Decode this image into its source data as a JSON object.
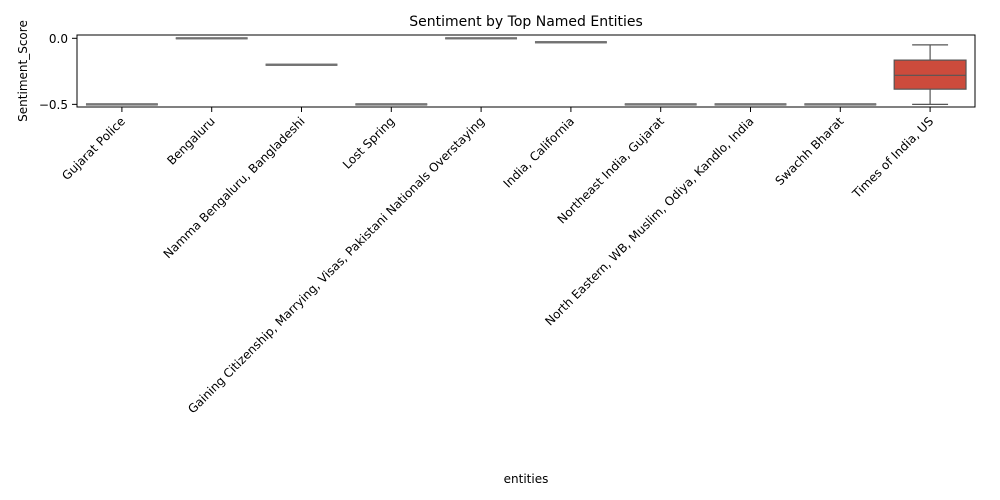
{
  "chart_data": {
    "type": "box",
    "title": "Sentiment by Top Named Entities",
    "xlabel": "entities",
    "ylabel": "Sentiment_Score",
    "ylim": [
      -0.52,
      0.025
    ],
    "yticks": [
      {
        "value": 0.0,
        "label": "0.0"
      },
      {
        "value": -0.5,
        "label": "−0.5"
      }
    ],
    "grid": false,
    "legend": "none",
    "categories": [
      "Gujarat Police",
      "Bengaluru",
      "Namma Bengaluru, Bangladeshi",
      "Lost Spring",
      "Gaining Citizenship, Marrying, Visas, Pakistani Nationals Overstaying",
      "India, California",
      "Northeast India, Gujarat",
      "North Eastern, WB, Muslim, Odiya, Kandlo, India",
      "Swachh Bharat",
      "Times of India, US"
    ],
    "boxes": [
      {
        "min": -0.5,
        "q1": -0.5,
        "median": -0.5,
        "q3": -0.5,
        "max": -0.5,
        "color": "#8e8e8e"
      },
      {
        "min": 0.0,
        "q1": 0.0,
        "median": 0.0,
        "q3": 0.0,
        "max": 0.0,
        "color": "#8e8e8e"
      },
      {
        "min": -0.2,
        "q1": -0.2,
        "median": -0.2,
        "q3": -0.2,
        "max": -0.2,
        "color": "#8e8e8e"
      },
      {
        "min": -0.5,
        "q1": -0.5,
        "median": -0.5,
        "q3": -0.5,
        "max": -0.5,
        "color": "#8e8e8e"
      },
      {
        "min": 0.0,
        "q1": 0.0,
        "median": 0.0,
        "q3": 0.0,
        "max": 0.0,
        "color": "#8e8e8e"
      },
      {
        "min": -0.03,
        "q1": -0.03,
        "median": -0.03,
        "q3": -0.03,
        "max": -0.03,
        "color": "#8e8e8e"
      },
      {
        "min": -0.5,
        "q1": -0.5,
        "median": -0.5,
        "q3": -0.5,
        "max": -0.5,
        "color": "#8e8e8e"
      },
      {
        "min": -0.5,
        "q1": -0.5,
        "median": -0.5,
        "q3": -0.5,
        "max": -0.5,
        "color": "#8e8e8e"
      },
      {
        "min": -0.5,
        "q1": -0.5,
        "median": -0.5,
        "q3": -0.5,
        "max": -0.5,
        "color": "#8e8e8e"
      },
      {
        "min": -0.5,
        "q1": -0.385,
        "median": -0.28,
        "q3": -0.165,
        "max": -0.05,
        "color": "#cc4b3c"
      }
    ]
  }
}
